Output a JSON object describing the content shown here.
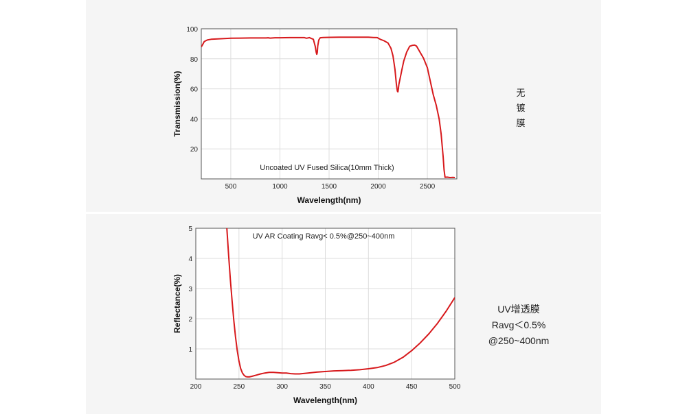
{
  "chart_data": [
    {
      "type": "line",
      "title": "",
      "annotation": "Uncoated UV Fused Silica(10mm Thick)",
      "xlabel": "Wavelength(nm)",
      "ylabel": "Transmission(%)",
      "xlim": [
        200,
        2800
      ],
      "ylim": [
        0,
        100
      ],
      "xticks": [
        500,
        1000,
        1500,
        2000,
        2500
      ],
      "yticks": [
        20,
        40,
        60,
        80,
        100
      ],
      "grid": true,
      "color": "#d7191c",
      "x": [
        200,
        210,
        230,
        260,
        300,
        400,
        500,
        600,
        700,
        800,
        860,
        880,
        900,
        950,
        1000,
        1100,
        1200,
        1250,
        1270,
        1300,
        1340,
        1360,
        1370,
        1375,
        1380,
        1385,
        1395,
        1410,
        1440,
        1500,
        1600,
        1700,
        1800,
        1900,
        1950,
        1990,
        2020,
        2060,
        2100,
        2130,
        2150,
        2170,
        2185,
        2195,
        2200,
        2205,
        2210,
        2220,
        2240,
        2260,
        2290,
        2320,
        2350,
        2370,
        2390,
        2420,
        2460,
        2500,
        2530,
        2560,
        2590,
        2620,
        2640,
        2660,
        2670,
        2680,
        2700,
        2730,
        2760,
        2780
      ],
      "y": [
        88,
        89,
        91.5,
        92.5,
        93,
        93.4,
        93.7,
        93.8,
        93.9,
        93.9,
        93.9,
        94,
        93.8,
        94,
        94,
        94.1,
        94.1,
        94.1,
        93.7,
        94.1,
        93,
        88,
        84,
        83,
        84,
        88.5,
        92.5,
        94,
        94.2,
        94.3,
        94.4,
        94.4,
        94.4,
        94.4,
        94.2,
        94.1,
        93,
        92,
        90.5,
        87,
        82,
        73,
        63,
        58.5,
        58,
        60,
        63,
        66,
        72.5,
        78.5,
        84.5,
        88.3,
        89,
        89.2,
        88.5,
        85,
        80.5,
        74,
        65,
        56,
        49,
        40,
        30,
        15,
        6,
        1,
        1.2,
        0.9,
        1,
        0.9
      ]
    },
    {
      "type": "line",
      "title": "",
      "annotation": "UV AR Coating Ravg< 0.5%@250~400nm",
      "xlabel": "Wavelength(nm)",
      "ylabel": "Reflectance(%)",
      "xlim": [
        200,
        500
      ],
      "ylim": [
        0,
        5
      ],
      "xticks": [
        200,
        250,
        300,
        350,
        400,
        450,
        500
      ],
      "yticks": [
        1,
        2,
        3,
        4,
        5
      ],
      "grid": true,
      "color": "#d7191c",
      "x": [
        236,
        238,
        240,
        242,
        244,
        246,
        248,
        250,
        252,
        254,
        256,
        258,
        260,
        262,
        265,
        270,
        275,
        280,
        285,
        290,
        295,
        300,
        305,
        310,
        315,
        320,
        330,
        340,
        350,
        360,
        370,
        380,
        390,
        400,
        410,
        420,
        430,
        440,
        450,
        460,
        470,
        480,
        490,
        500
      ],
      "y": [
        5,
        4.1,
        3.3,
        2.6,
        1.95,
        1.4,
        0.95,
        0.6,
        0.35,
        0.2,
        0.12,
        0.08,
        0.07,
        0.07,
        0.09,
        0.13,
        0.17,
        0.2,
        0.22,
        0.22,
        0.21,
        0.2,
        0.2,
        0.18,
        0.17,
        0.17,
        0.2,
        0.23,
        0.25,
        0.27,
        0.28,
        0.29,
        0.31,
        0.34,
        0.38,
        0.45,
        0.56,
        0.72,
        0.94,
        1.2,
        1.5,
        1.85,
        2.25,
        2.7
      ]
    }
  ],
  "side_labels": {
    "top": [
      "无",
      "镀",
      "膜"
    ],
    "bottom": [
      "UV增透膜",
      "Ravg＜0.5%",
      "@250~400nm"
    ]
  }
}
